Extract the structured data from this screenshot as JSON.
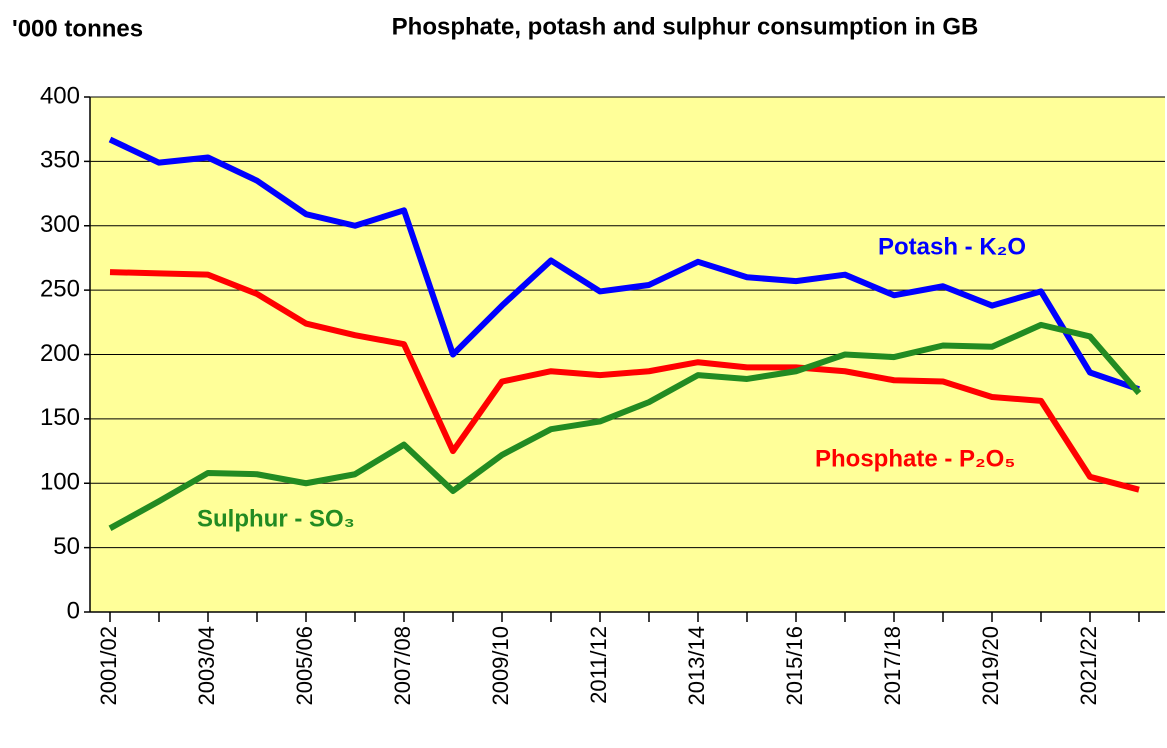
{
  "chart_data": {
    "type": "line",
    "title": "Phosphate, potash and sulphur consumption in GB",
    "y_axis_label": "'000 tonnes",
    "categories": [
      "2001/02",
      null,
      "2003/04",
      null,
      "2005/06",
      null,
      "2007/08",
      null,
      "2009/10",
      null,
      "2011/12",
      null,
      "2013/14",
      null,
      "2015/16",
      null,
      "2017/18",
      null,
      "2019/20",
      null,
      "2021/22",
      null
    ],
    "series": [
      {
        "name": "Potash - K₂O",
        "color": "#0000ff",
        "values": [
          367,
          349,
          353,
          335,
          309,
          300,
          312,
          200,
          238,
          273,
          249,
          254,
          272,
          260,
          257,
          262,
          246,
          253,
          238,
          249,
          186,
          173
        ]
      },
      {
        "name": "Phosphate - P₂O₅",
        "color": "#ff0000",
        "values": [
          264,
          263,
          262,
          247,
          224,
          215,
          208,
          125,
          179,
          187,
          184,
          187,
          194,
          190,
          190,
          187,
          180,
          179,
          167,
          164,
          105,
          95
        ]
      },
      {
        "name": "Sulphur - SO₃",
        "color": "#228b22",
        "values": [
          65,
          86,
          108,
          107,
          100,
          107,
          130,
          94,
          122,
          142,
          148,
          163,
          184,
          181,
          187,
          200,
          198,
          207,
          206,
          223,
          214,
          170
        ]
      }
    ],
    "ylim": [
      0,
      400
    ],
    "yticks": [
      0,
      50,
      100,
      150,
      200,
      250,
      300,
      350,
      400
    ],
    "grid": true,
    "plot_background": "#ffff99"
  }
}
